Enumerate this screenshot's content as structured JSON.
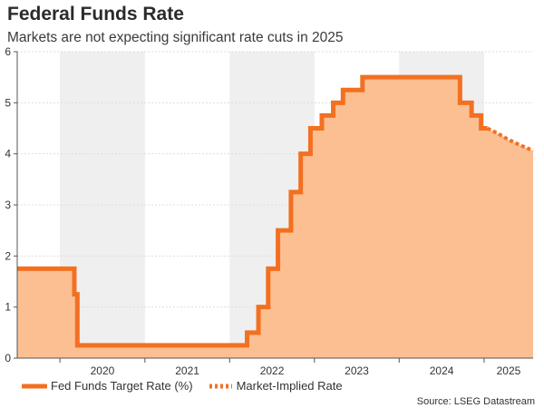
{
  "title": "Federal Funds Rate",
  "subtitle": "Markets are not expecting significant rate cuts in 2025",
  "source": "Source: LSEG Datastream",
  "colors": {
    "line": "#f37021",
    "area": "#fbbf92",
    "band": "#efefef",
    "axis": "#555555"
  },
  "chart_data": {
    "type": "area",
    "y_ticks": [
      "0",
      "1",
      "2",
      "3",
      "4",
      "5",
      "6"
    ],
    "ylim": [
      0,
      6
    ],
    "x_ticks": [
      "2020",
      "2021",
      "2022",
      "2023",
      "2024",
      "2025"
    ],
    "xlim": [
      "2019-07-01",
      "2025-07-31"
    ],
    "shaded_years": [
      "2020",
      "2022",
      "2024"
    ],
    "grid": true,
    "legend": "bottom-left",
    "series": [
      {
        "name": "Fed Funds Target Rate (%)",
        "style": "solid",
        "points": [
          [
            "2019-07-01",
            1.75
          ],
          [
            "2020-03-03",
            1.75
          ],
          [
            "2020-03-03",
            1.25
          ],
          [
            "2020-03-16",
            1.25
          ],
          [
            "2020-03-16",
            0.25
          ],
          [
            "2022-03-17",
            0.25
          ],
          [
            "2022-03-17",
            0.5
          ],
          [
            "2022-05-05",
            0.5
          ],
          [
            "2022-05-05",
            1.0
          ],
          [
            "2022-06-16",
            1.0
          ],
          [
            "2022-06-16",
            1.75
          ],
          [
            "2022-07-28",
            1.75
          ],
          [
            "2022-07-28",
            2.5
          ],
          [
            "2022-09-22",
            2.5
          ],
          [
            "2022-09-22",
            3.25
          ],
          [
            "2022-11-03",
            3.25
          ],
          [
            "2022-11-03",
            4.0
          ],
          [
            "2022-12-15",
            4.0
          ],
          [
            "2022-12-15",
            4.5
          ],
          [
            "2023-02-02",
            4.5
          ],
          [
            "2023-02-02",
            4.75
          ],
          [
            "2023-03-23",
            4.75
          ],
          [
            "2023-03-23",
            5.0
          ],
          [
            "2023-05-04",
            5.0
          ],
          [
            "2023-05-04",
            5.25
          ],
          [
            "2023-07-27",
            5.25
          ],
          [
            "2023-07-27",
            5.5
          ],
          [
            "2024-09-19",
            5.5
          ],
          [
            "2024-09-19",
            5.0
          ],
          [
            "2024-11-08",
            5.0
          ],
          [
            "2024-11-08",
            4.75
          ],
          [
            "2024-12-19",
            4.75
          ],
          [
            "2024-12-19",
            4.5
          ],
          [
            "2025-01-15",
            4.5
          ]
        ]
      },
      {
        "name": "Market-Implied Rate",
        "style": "dotted",
        "points": [
          [
            "2025-01-15",
            4.5
          ],
          [
            "2025-03-01",
            4.4
          ],
          [
            "2025-04-15",
            4.28
          ],
          [
            "2025-06-01",
            4.18
          ],
          [
            "2025-07-31",
            4.06
          ]
        ]
      }
    ]
  }
}
